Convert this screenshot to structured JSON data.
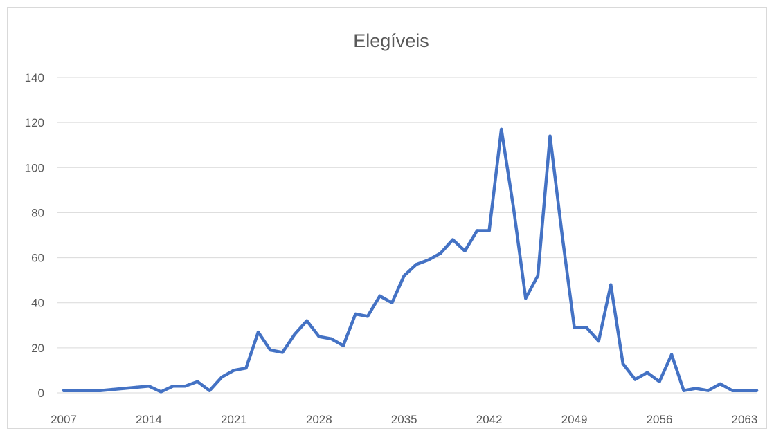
{
  "chart_data": {
    "type": "line",
    "title": "Elegíveis",
    "xlabel": "",
    "ylabel": "",
    "ylim": [
      0,
      140
    ],
    "yticks": [
      0,
      20,
      40,
      60,
      80,
      100,
      120,
      140
    ],
    "xlim": [
      2007,
      2064
    ],
    "xticks": [
      2007,
      2014,
      2021,
      2028,
      2035,
      2042,
      2049,
      2056,
      2063
    ],
    "grid": true,
    "legend": "none",
    "color": "#4472C4",
    "series": [
      {
        "x": [
          2007,
          2008,
          2009,
          2010,
          2011,
          2012,
          2013,
          2014,
          2015,
          2016,
          2017,
          2018,
          2019,
          2020,
          2021,
          2022,
          2023,
          2024,
          2025,
          2026,
          2027,
          2028,
          2029,
          2030,
          2031,
          2032,
          2033,
          2034,
          2035,
          2036,
          2037,
          2038,
          2039,
          2040,
          2041,
          2042,
          2043,
          2044,
          2045,
          2046,
          2047,
          2048,
          2049,
          2050,
          2051,
          2052,
          2053,
          2054,
          2055,
          2056,
          2057,
          2058,
          2059,
          2060,
          2061,
          2062,
          2063,
          2064
        ],
        "values": [
          1,
          1,
          1,
          1,
          1.5,
          2,
          2.5,
          3,
          0.5,
          3,
          3,
          5,
          1,
          7,
          10,
          11,
          27,
          19,
          18,
          26,
          32,
          25,
          24,
          21,
          35,
          34,
          43,
          40,
          52,
          57,
          59,
          62,
          68,
          63,
          72,
          72,
          117,
          82,
          42,
          52,
          114,
          70,
          29,
          29,
          23,
          48,
          13,
          6,
          9,
          5,
          17,
          1,
          2,
          1,
          4,
          1,
          1,
          1
        ]
      }
    ]
  }
}
